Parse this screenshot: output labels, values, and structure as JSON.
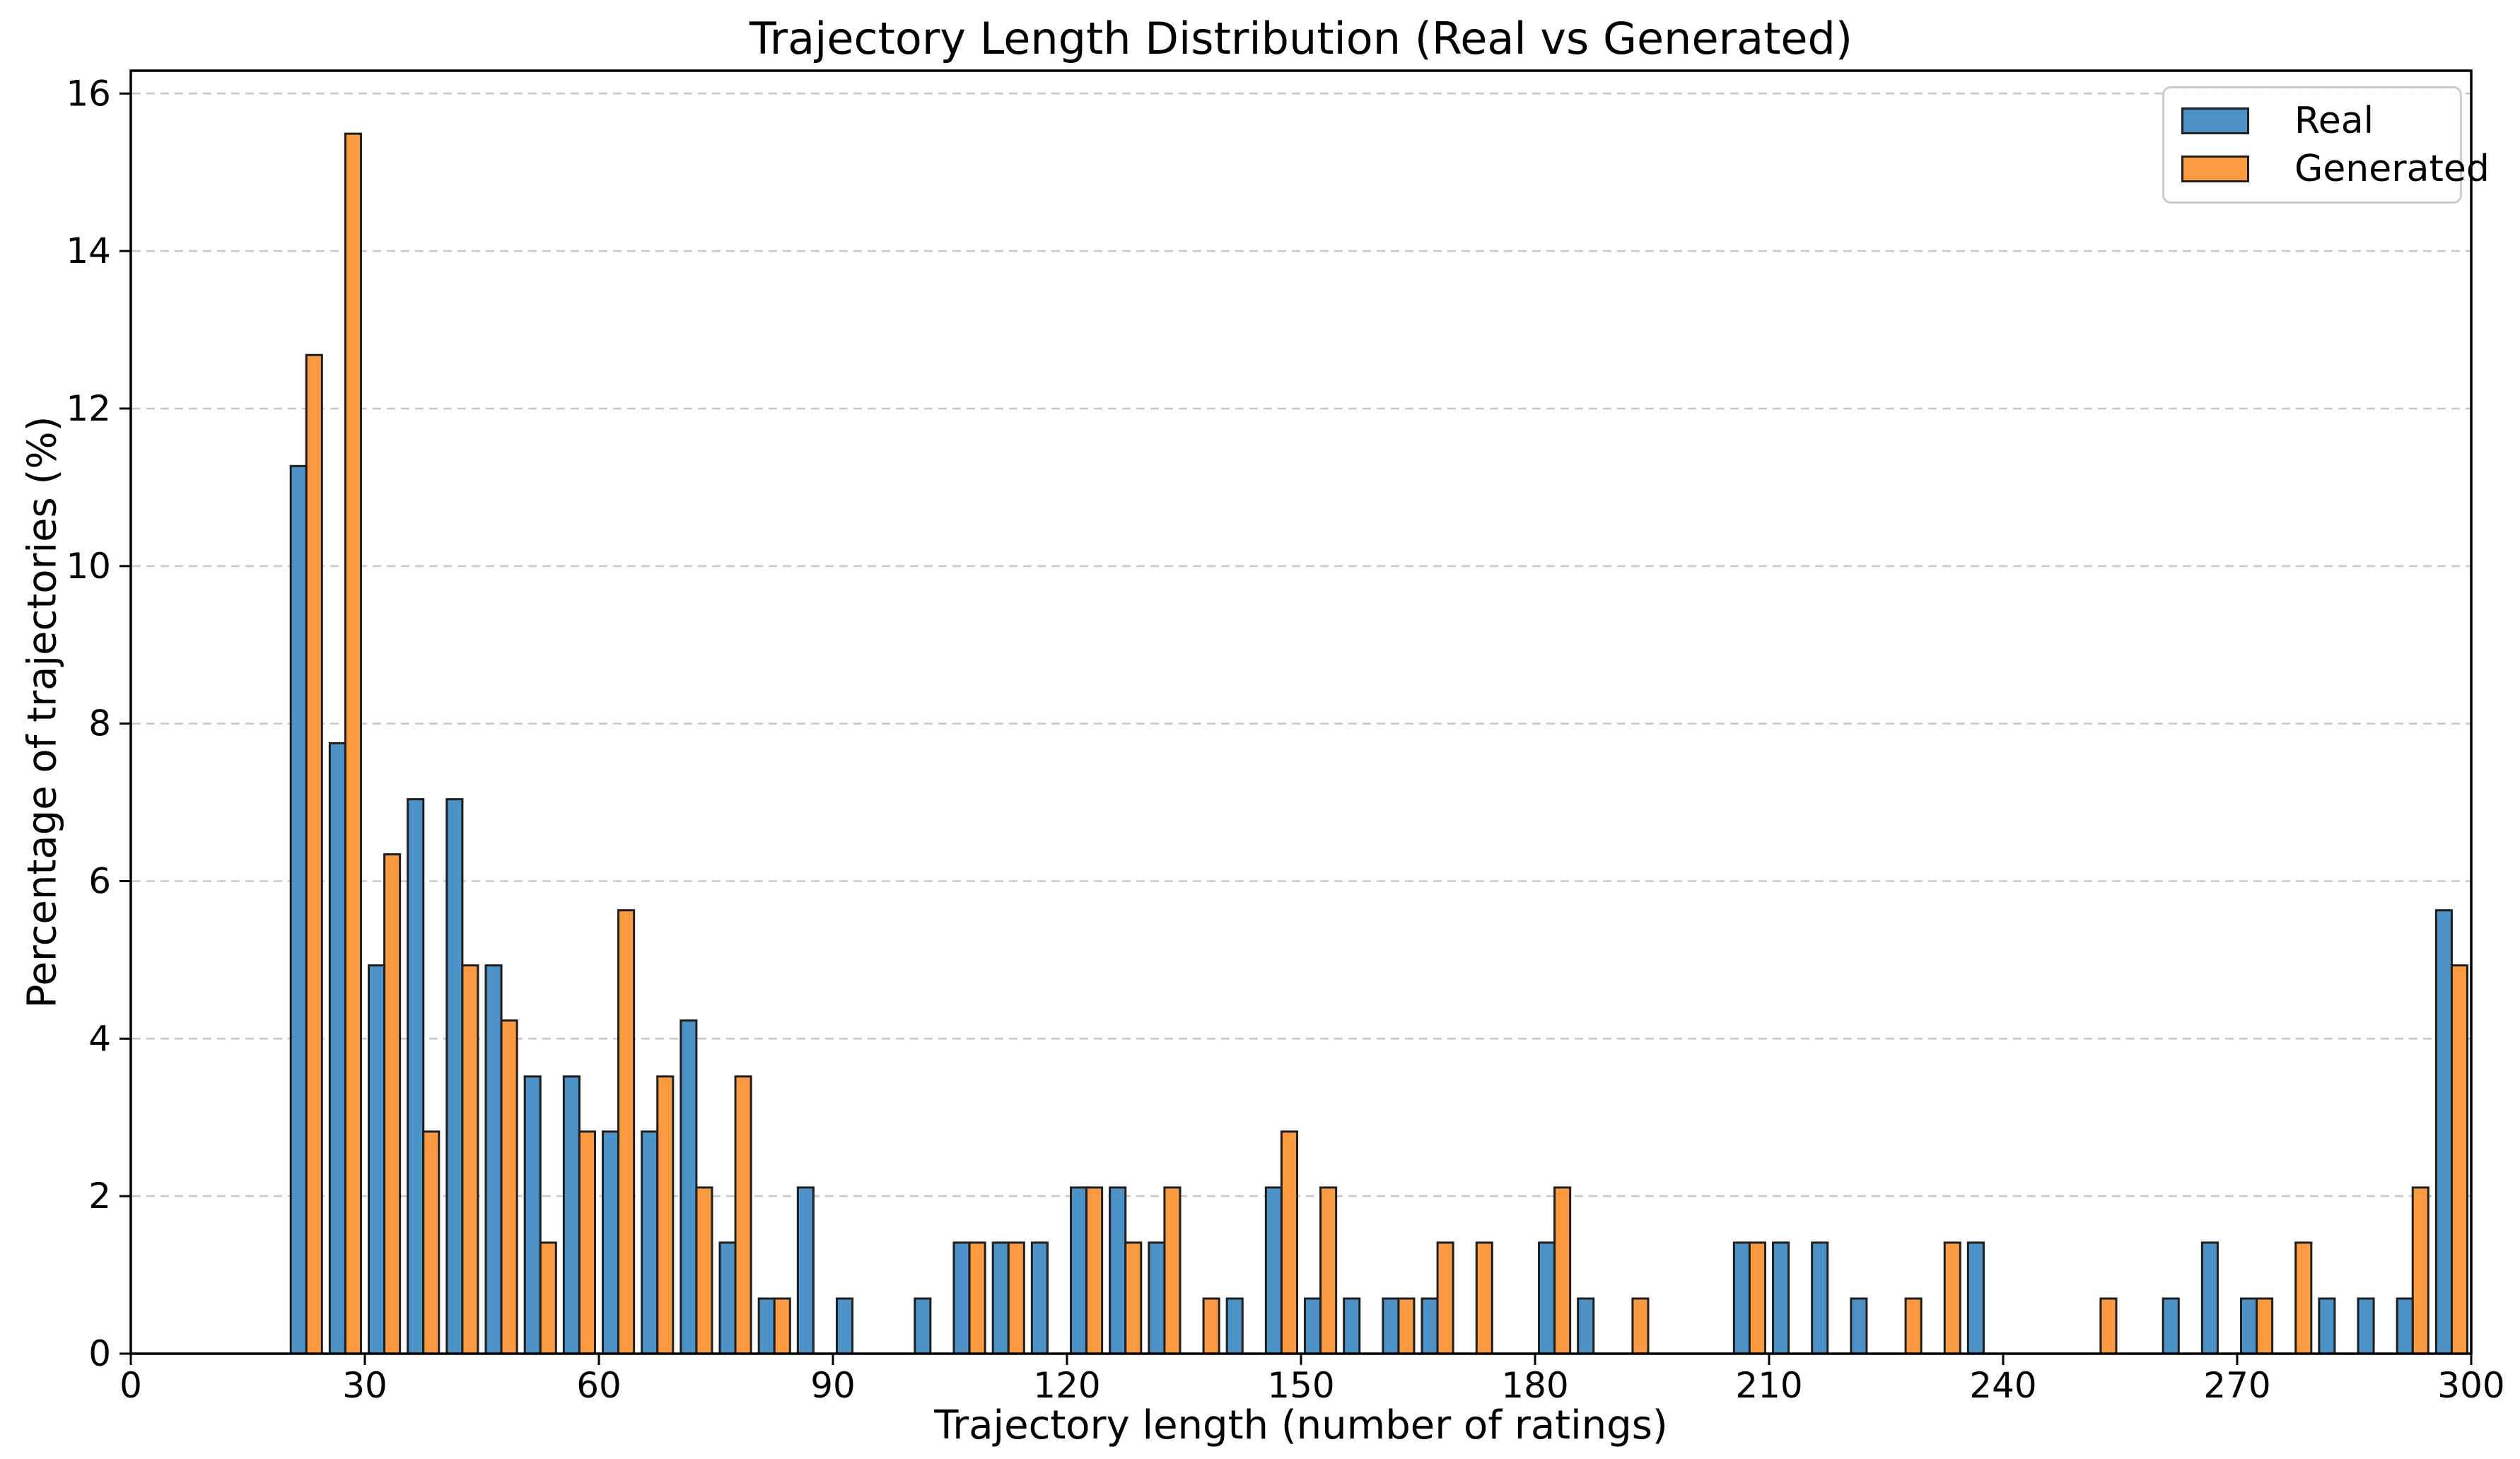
{
  "chart_data": {
    "type": "bar",
    "subtype": "grouped-histogram",
    "title": "Trajectory Length Distribution (Real vs Generated)",
    "xlabel": "Trajectory length (number of ratings)",
    "ylabel": "Percentage of trajectories (%)",
    "bin_start": 20,
    "bin_width": 5,
    "bin_starts": [
      20,
      25,
      30,
      35,
      40,
      45,
      50,
      55,
      60,
      65,
      70,
      75,
      80,
      85,
      90,
      95,
      100,
      105,
      110,
      115,
      120,
      125,
      130,
      135,
      140,
      145,
      150,
      155,
      160,
      165,
      170,
      175,
      180,
      185,
      190,
      195,
      200,
      205,
      210,
      215,
      220,
      225,
      230,
      235,
      240,
      245,
      250,
      255,
      260,
      265,
      270,
      275,
      280,
      285,
      290,
      295
    ],
    "series": [
      {
        "name": "Real",
        "color": "#4c92c6",
        "values": [
          11.27,
          7.75,
          4.93,
          7.04,
          7.04,
          4.93,
          3.52,
          3.52,
          2.82,
          2.82,
          4.23,
          1.41,
          0.7,
          2.11,
          0.7,
          0,
          0.7,
          1.41,
          1.41,
          1.41,
          2.11,
          2.11,
          1.41,
          0,
          0.7,
          2.11,
          0.7,
          0.7,
          0.7,
          0.7,
          0,
          0,
          1.41,
          0.7,
          0,
          0,
          0,
          1.41,
          1.41,
          1.41,
          0.7,
          0,
          0,
          1.41,
          0,
          0,
          0,
          0,
          0.7,
          1.41,
          0.7,
          0,
          0.7,
          0.7,
          0.7,
          5.63
        ]
      },
      {
        "name": "Generated",
        "color": "#fc9a41",
        "values": [
          12.68,
          15.49,
          6.34,
          2.82,
          4.93,
          4.23,
          1.41,
          2.82,
          5.63,
          3.52,
          2.11,
          3.52,
          0.7,
          0,
          0,
          0,
          0,
          1.41,
          1.41,
          0,
          2.11,
          1.41,
          2.11,
          0.7,
          0,
          2.82,
          2.11,
          0,
          0.7,
          1.41,
          1.41,
          0,
          2.11,
          0,
          0.7,
          0,
          0,
          1.41,
          0,
          0,
          0,
          0.7,
          1.41,
          0,
          0,
          0,
          0.7,
          0,
          0,
          0,
          0.7,
          1.41,
          0,
          0,
          2.11,
          4.93
        ]
      }
    ],
    "x_ticks": [
      0,
      30,
      60,
      90,
      120,
      150,
      180,
      210,
      240,
      270,
      300
    ],
    "y_ticks": [
      0,
      2,
      4,
      6,
      8,
      10,
      12,
      14,
      16
    ],
    "xlim": [
      0,
      300
    ],
    "ylim": [
      0,
      16.29
    ],
    "grid": "horizontal-dashed",
    "grid_color": "#c8c8c8",
    "bar_edge_color": "#1f1f1f",
    "legend_position": "upper-right"
  }
}
